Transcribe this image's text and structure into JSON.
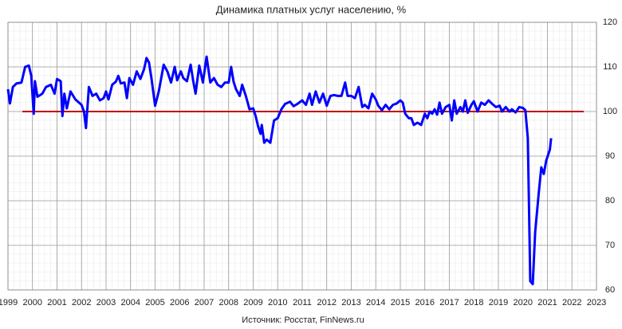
{
  "chart_data": {
    "type": "line",
    "title": "Динамика платных услуг населению, %",
    "source": "Источник: Росстат, FinNews.ru",
    "color": "#0000ff",
    "reference_line": {
      "value": 100,
      "color": "#c00000"
    },
    "grid": true,
    "minor_grid": true,
    "xlim": [
      1999,
      2023
    ],
    "xticks": [
      1999,
      2000,
      2001,
      2002,
      2003,
      2004,
      2005,
      2006,
      2007,
      2008,
      2009,
      2010,
      2011,
      2012,
      2013,
      2014,
      2015,
      2016,
      2017,
      2018,
      2019,
      2020,
      2021,
      2022,
      2023
    ],
    "ylim": [
      60,
      120
    ],
    "yticks": [
      60,
      70,
      80,
      90,
      100,
      110,
      120
    ],
    "x": [
      1999.0,
      1999.08,
      1999.2,
      1999.35,
      1999.55,
      1999.7,
      1999.85,
      1999.95,
      2000.05,
      2000.1,
      2000.2,
      2000.4,
      2000.55,
      2000.75,
      2000.9,
      2001.0,
      2001.15,
      2001.22,
      2001.3,
      2001.4,
      2001.55,
      2001.75,
      2002.0,
      2002.1,
      2002.18,
      2002.3,
      2002.45,
      2002.6,
      2002.75,
      2002.9,
      2003.0,
      2003.1,
      2003.25,
      2003.4,
      2003.5,
      2003.6,
      2003.75,
      2003.85,
      2003.95,
      2004.1,
      2004.25,
      2004.4,
      2004.55,
      2004.65,
      2004.75,
      2004.85,
      2005.0,
      2005.15,
      2005.35,
      2005.5,
      2005.65,
      2005.8,
      2005.9,
      2006.05,
      2006.15,
      2006.3,
      2006.45,
      2006.55,
      2006.65,
      2006.8,
      2006.95,
      2007.1,
      2007.25,
      2007.4,
      2007.55,
      2007.7,
      2007.85,
      2008.0,
      2008.1,
      2008.2,
      2008.3,
      2008.45,
      2008.55,
      2008.7,
      2008.85,
      2009.0,
      2009.1,
      2009.2,
      2009.3,
      2009.35,
      2009.45,
      2009.55,
      2009.7,
      2009.85,
      2010.0,
      2010.15,
      2010.3,
      2010.5,
      2010.65,
      2010.8,
      2011.0,
      2011.15,
      2011.3,
      2011.4,
      2011.55,
      2011.7,
      2011.85,
      2012.0,
      2012.15,
      2012.3,
      2012.45,
      2012.6,
      2012.75,
      2012.85,
      2013.0,
      2013.15,
      2013.3,
      2013.45,
      2013.55,
      2013.7,
      2013.85,
      2014.0,
      2014.1,
      2014.25,
      2014.4,
      2014.55,
      2014.7,
      2014.85,
      2015.0,
      2015.1,
      2015.2,
      2015.35,
      2015.45,
      2015.55,
      2015.7,
      2015.85,
      2016.0,
      2016.1,
      2016.2,
      2016.3,
      2016.4,
      2016.5,
      2016.6,
      2016.7,
      2016.85,
      2017.0,
      2017.1,
      2017.2,
      2017.3,
      2017.45,
      2017.55,
      2017.65,
      2017.75,
      2017.9,
      2018.0,
      2018.15,
      2018.3,
      2018.45,
      2018.6,
      2018.75,
      2018.9,
      2019.05,
      2019.15,
      2019.3,
      2019.45,
      2019.55,
      2019.7,
      2019.85,
      2020.0,
      2020.1,
      2020.2,
      2020.3,
      2020.4,
      2020.5,
      2020.65,
      2020.75,
      2020.85,
      2020.95,
      2021.1,
      2021.15
    ],
    "values": [
      105,
      101.8,
      105.5,
      106.3,
      106.5,
      110,
      110.3,
      108,
      99.5,
      106.8,
      103.3,
      104,
      105.5,
      106,
      104,
      107.3,
      106.8,
      99,
      104,
      100.7,
      104.5,
      102.7,
      101.5,
      100,
      96.3,
      105.5,
      103.5,
      104,
      102.5,
      103,
      104.5,
      102.7,
      106,
      106.7,
      108,
      106.3,
      106.5,
      103,
      107.5,
      106,
      109,
      107.3,
      109.5,
      112,
      111,
      107.5,
      101.3,
      104.5,
      110.5,
      109,
      106.5,
      110,
      107,
      109,
      107.5,
      106.8,
      110.5,
      107,
      104,
      110.3,
      106.5,
      112.3,
      106.5,
      107.5,
      106,
      105.5,
      106.5,
      106.5,
      110,
      106.7,
      105,
      103.5,
      106,
      103.5,
      100.5,
      100.7,
      99,
      96.7,
      95,
      97,
      93,
      93.7,
      93,
      98,
      98.5,
      100.5,
      101.7,
      102.2,
      101.2,
      101.7,
      102.5,
      101.5,
      104,
      101.5,
      104.5,
      102,
      104,
      101.3,
      103.5,
      103.7,
      103.5,
      103.5,
      106.5,
      103.5,
      103.5,
      103,
      105.5,
      101,
      101.5,
      100.7,
      104,
      102.7,
      101.3,
      100.3,
      101.5,
      100.5,
      101.5,
      101.8,
      102.5,
      102,
      99.5,
      98.5,
      98.5,
      97,
      97.5,
      97,
      99.5,
      98.5,
      100,
      99.5,
      100.5,
      99.3,
      102,
      99.5,
      101,
      101.5,
      98,
      102.5,
      99.5,
      101,
      100,
      102.5,
      99.7,
      101.5,
      102.3,
      100,
      102,
      101.5,
      102.5,
      101.7,
      101,
      101.3,
      100,
      101,
      100,
      100.5,
      99.8,
      101,
      100.8,
      100.3,
      94,
      62,
      61.3,
      73,
      82,
      87.5,
      86,
      89,
      91.5,
      94
    ]
  }
}
